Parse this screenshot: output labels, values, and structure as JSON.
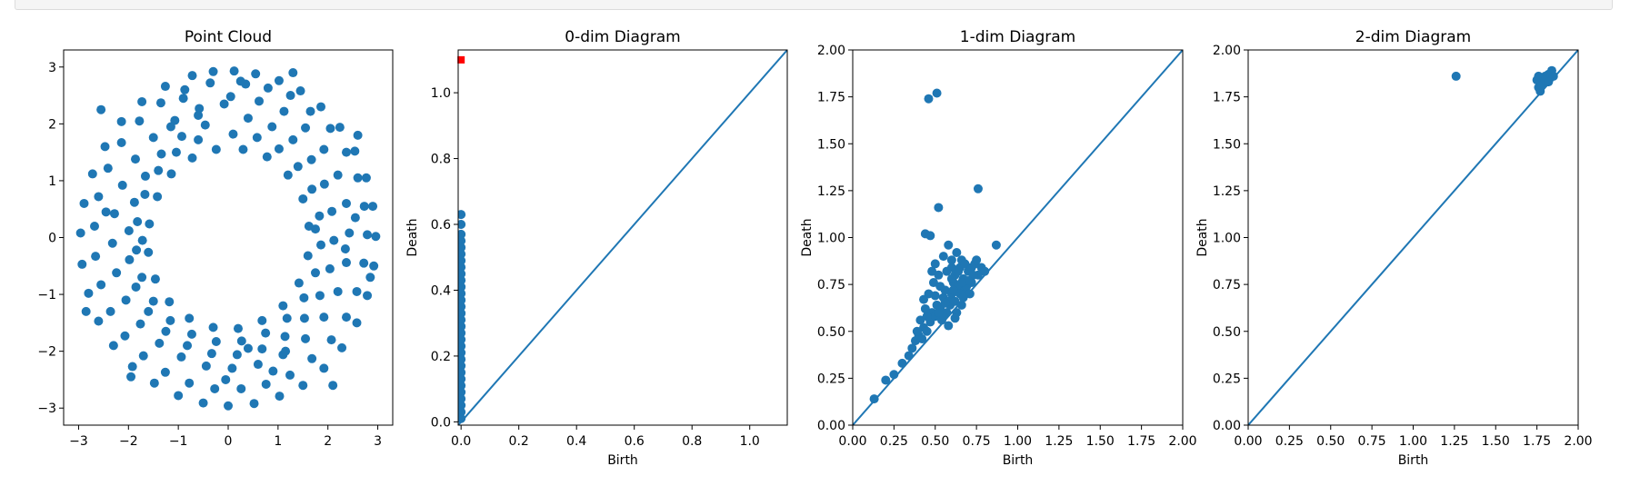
{
  "output_bar": {},
  "chart_data": [
    {
      "type": "scatter",
      "title": "Point Cloud",
      "xlabel": "",
      "ylabel": "",
      "xlim": [
        -3.3,
        3.3
      ],
      "ylim": [
        -3.3,
        3.3
      ],
      "xticks": [
        -3,
        -2,
        -1,
        0,
        1,
        2,
        3
      ],
      "yticks": [
        -3,
        -2,
        -1,
        0,
        1,
        2,
        3
      ],
      "xtick_labels": [
        "−3",
        "−2",
        "−1",
        "0",
        "1",
        "2",
        "3"
      ],
      "ytick_labels": [
        "−3",
        "−2",
        "−1",
        "0",
        "1",
        "2",
        "3"
      ],
      "color": "#1f77b4",
      "grid": false,
      "points": [
        [
          0.12,
          2.93
        ],
        [
          0.55,
          2.88
        ],
        [
          1.02,
          2.76
        ],
        [
          1.45,
          2.58
        ],
        [
          1.86,
          2.3
        ],
        [
          2.24,
          1.94
        ],
        [
          2.54,
          1.52
        ],
        [
          2.77,
          1.05
        ],
        [
          2.9,
          0.55
        ],
        [
          2.96,
          0.02
        ],
        [
          2.92,
          -0.5
        ],
        [
          2.79,
          -1.02
        ],
        [
          2.58,
          -1.5
        ],
        [
          2.28,
          -1.94
        ],
        [
          1.92,
          -2.3
        ],
        [
          1.5,
          -2.6
        ],
        [
          1.03,
          -2.79
        ],
        [
          0.52,
          -2.92
        ],
        [
          0.0,
          -2.96
        ],
        [
          -0.5,
          -2.91
        ],
        [
          -1.0,
          -2.78
        ],
        [
          -1.48,
          -2.56
        ],
        [
          -1.92,
          -2.27
        ],
        [
          -2.3,
          -1.9
        ],
        [
          -2.6,
          -1.47
        ],
        [
          -2.8,
          -0.98
        ],
        [
          -2.93,
          -0.47
        ],
        [
          -2.96,
          0.08
        ],
        [
          -2.89,
          0.6
        ],
        [
          -2.72,
          1.12
        ],
        [
          -2.47,
          1.6
        ],
        [
          -2.14,
          2.04
        ],
        [
          -1.73,
          2.39
        ],
        [
          -1.26,
          2.66
        ],
        [
          -0.72,
          2.85
        ],
        [
          -0.3,
          2.92
        ],
        [
          0.35,
          2.7
        ],
        [
          0.8,
          2.63
        ],
        [
          1.25,
          2.5
        ],
        [
          1.65,
          2.22
        ],
        [
          2.05,
          1.92
        ],
        [
          2.37,
          1.5
        ],
        [
          2.6,
          1.05
        ],
        [
          2.73,
          0.55
        ],
        [
          2.79,
          0.05
        ],
        [
          2.72,
          -0.45
        ],
        [
          2.58,
          -0.95
        ],
        [
          2.37,
          -1.4
        ],
        [
          2.07,
          -1.8
        ],
        [
          1.68,
          -2.13
        ],
        [
          1.24,
          -2.42
        ],
        [
          0.76,
          -2.58
        ],
        [
          0.26,
          -2.66
        ],
        [
          -0.27,
          -2.66
        ],
        [
          -0.78,
          -2.56
        ],
        [
          -1.26,
          -2.37
        ],
        [
          -1.7,
          -2.08
        ],
        [
          -2.07,
          -1.73
        ],
        [
          -2.36,
          -1.3
        ],
        [
          -2.55,
          -0.83
        ],
        [
          -2.66,
          -0.33
        ],
        [
          -2.68,
          0.2
        ],
        [
          -2.6,
          0.72
        ],
        [
          -2.41,
          1.22
        ],
        [
          -2.14,
          1.67
        ],
        [
          -1.78,
          2.05
        ],
        [
          -1.35,
          2.37
        ],
        [
          -0.87,
          2.6
        ],
        [
          -0.36,
          2.72
        ],
        [
          0.05,
          2.48
        ],
        [
          0.62,
          2.4
        ],
        [
          1.12,
          2.22
        ],
        [
          1.55,
          1.93
        ],
        [
          1.92,
          1.55
        ],
        [
          2.2,
          1.1
        ],
        [
          2.37,
          0.6
        ],
        [
          2.43,
          0.08
        ],
        [
          2.37,
          -0.44
        ],
        [
          2.2,
          -0.95
        ],
        [
          1.92,
          -1.4
        ],
        [
          1.55,
          -1.78
        ],
        [
          1.1,
          -2.06
        ],
        [
          0.6,
          -2.23
        ],
        [
          0.08,
          -2.3
        ],
        [
          -0.44,
          -2.26
        ],
        [
          -0.94,
          -2.1
        ],
        [
          -1.38,
          -1.86
        ],
        [
          -1.76,
          -1.52
        ],
        [
          -2.05,
          -1.1
        ],
        [
          -2.24,
          -0.62
        ],
        [
          -2.32,
          -0.1
        ],
        [
          -2.28,
          0.42
        ],
        [
          -2.12,
          0.92
        ],
        [
          -1.86,
          1.38
        ],
        [
          -1.5,
          1.76
        ],
        [
          -1.07,
          2.06
        ],
        [
          -0.58,
          2.27
        ],
        [
          -0.08,
          2.35
        ],
        [
          0.4,
          2.1
        ],
        [
          0.88,
          1.95
        ],
        [
          1.3,
          1.72
        ],
        [
          1.67,
          1.37
        ],
        [
          1.93,
          0.94
        ],
        [
          2.08,
          0.46
        ],
        [
          2.12,
          -0.05
        ],
        [
          2.04,
          -0.55
        ],
        [
          1.84,
          -1.02
        ],
        [
          1.53,
          -1.42
        ],
        [
          1.14,
          -1.74
        ],
        [
          0.68,
          -1.96
        ],
        [
          0.18,
          -2.06
        ],
        [
          -0.33,
          -2.04
        ],
        [
          -0.82,
          -1.9
        ],
        [
          -1.25,
          -1.65
        ],
        [
          -1.6,
          -1.3
        ],
        [
          -1.85,
          -0.87
        ],
        [
          -1.98,
          -0.39
        ],
        [
          -1.99,
          0.12
        ],
        [
          -1.88,
          0.62
        ],
        [
          -1.66,
          1.08
        ],
        [
          -1.34,
          1.47
        ],
        [
          -0.93,
          1.78
        ],
        [
          -0.46,
          1.98
        ],
        [
          0.1,
          1.82
        ],
        [
          0.58,
          1.76
        ],
        [
          1.02,
          1.56
        ],
        [
          1.4,
          1.25
        ],
        [
          1.68,
          0.85
        ],
        [
          1.83,
          0.38
        ],
        [
          1.86,
          -0.13
        ],
        [
          1.75,
          -0.62
        ],
        [
          1.52,
          -1.06
        ],
        [
          1.18,
          -1.42
        ],
        [
          0.75,
          -1.68
        ],
        [
          0.27,
          -1.82
        ],
        [
          -0.24,
          -1.83
        ],
        [
          -0.73,
          -1.7
        ],
        [
          -1.16,
          -1.46
        ],
        [
          -1.5,
          -1.12
        ],
        [
          -1.73,
          -0.7
        ],
        [
          -1.84,
          -0.22
        ],
        [
          -1.82,
          0.28
        ],
        [
          -1.67,
          0.76
        ],
        [
          -1.4,
          1.18
        ],
        [
          -1.04,
          1.5
        ],
        [
          -0.6,
          1.72
        ],
        [
          0.3,
          1.55
        ],
        [
          0.78,
          1.42
        ],
        [
          1.2,
          1.1
        ],
        [
          1.5,
          0.68
        ],
        [
          1.62,
          0.2
        ],
        [
          1.6,
          -0.32
        ],
        [
          1.42,
          -0.8
        ],
        [
          1.1,
          -1.2
        ],
        [
          0.68,
          -1.46
        ],
        [
          0.2,
          -1.6
        ],
        [
          -0.3,
          -1.58
        ],
        [
          -0.78,
          -1.42
        ],
        [
          -1.18,
          -1.13
        ],
        [
          -1.46,
          -0.73
        ],
        [
          -1.6,
          -0.26
        ],
        [
          -1.58,
          0.24
        ],
        [
          -1.42,
          0.72
        ],
        [
          -1.14,
          1.12
        ],
        [
          -0.72,
          1.4
        ],
        [
          -0.24,
          1.55
        ],
        [
          1.3,
          2.9
        ],
        [
          2.6,
          1.8
        ],
        [
          -0.9,
          2.45
        ],
        [
          2.1,
          -2.6
        ],
        [
          -2.55,
          2.25
        ],
        [
          0.9,
          -2.35
        ],
        [
          -1.95,
          -2.45
        ],
        [
          2.85,
          -0.7
        ],
        [
          -2.85,
          -1.3
        ],
        [
          1.75,
          0.15
        ],
        [
          -1.72,
          -0.05
        ],
        [
          0.4,
          -1.95
        ],
        [
          -0.6,
          2.15
        ],
        [
          2.35,
          -0.2
        ],
        [
          -2.45,
          0.45
        ],
        [
          1.15,
          -2.0
        ],
        [
          -1.15,
          1.95
        ],
        [
          0.25,
          2.75
        ],
        [
          -0.05,
          -2.5
        ],
        [
          2.55,
          0.35
        ]
      ]
    },
    {
      "type": "scatter",
      "title": "0-dim Diagram",
      "xlabel": "Birth",
      "ylabel": "Death",
      "xlim": [
        -0.01,
        1.13
      ],
      "ylim": [
        -0.01,
        1.13
      ],
      "xticks": [
        0.0,
        0.2,
        0.4,
        0.6,
        0.8,
        1.0
      ],
      "yticks": [
        0.0,
        0.2,
        0.4,
        0.6,
        0.8,
        1.0
      ],
      "xtick_labels": [
        "0.0",
        "0.2",
        "0.4",
        "0.6",
        "0.8",
        "1.0"
      ],
      "ytick_labels": [
        "0.0",
        "0.2",
        "0.4",
        "0.6",
        "0.8",
        "1.0"
      ],
      "diagonal": true,
      "color": "#1f77b4",
      "infinite_point": {
        "x": 0.0,
        "y": 1.1,
        "color": "#ff0000",
        "marker": "square"
      },
      "points": [
        [
          0,
          0.63
        ],
        [
          0,
          0.6
        ],
        [
          0,
          0.57
        ],
        [
          0,
          0.55
        ],
        [
          0,
          0.53
        ],
        [
          0,
          0.51
        ],
        [
          0,
          0.49
        ],
        [
          0,
          0.47
        ],
        [
          0,
          0.45
        ],
        [
          0,
          0.43
        ],
        [
          0,
          0.41
        ],
        [
          0,
          0.39
        ],
        [
          0,
          0.37
        ],
        [
          0,
          0.35
        ],
        [
          0,
          0.33
        ],
        [
          0,
          0.31
        ],
        [
          0,
          0.29
        ],
        [
          0,
          0.27
        ],
        [
          0,
          0.25
        ],
        [
          0,
          0.23
        ],
        [
          0,
          0.21
        ],
        [
          0,
          0.19
        ],
        [
          0,
          0.17
        ],
        [
          0,
          0.15
        ],
        [
          0,
          0.13
        ],
        [
          0,
          0.11
        ],
        [
          0,
          0.09
        ],
        [
          0,
          0.07
        ],
        [
          0,
          0.05
        ],
        [
          0,
          0.03
        ],
        [
          0,
          0.01
        ]
      ]
    },
    {
      "type": "scatter",
      "title": "1-dim Diagram",
      "xlabel": "Birth",
      "ylabel": "Death",
      "xlim": [
        0.0,
        2.0
      ],
      "ylim": [
        0.0,
        2.0
      ],
      "xticks": [
        0.0,
        0.25,
        0.5,
        0.75,
        1.0,
        1.25,
        1.5,
        1.75,
        2.0
      ],
      "yticks": [
        0.0,
        0.25,
        0.5,
        0.75,
        1.0,
        1.25,
        1.5,
        1.75,
        2.0
      ],
      "xtick_labels": [
        "0.00",
        "0.25",
        "0.50",
        "0.75",
        "1.00",
        "1.25",
        "1.50",
        "1.75",
        "2.00"
      ],
      "ytick_labels": [
        "0.00",
        "0.25",
        "0.50",
        "0.75",
        "1.00",
        "1.25",
        "1.50",
        "1.75",
        "2.00"
      ],
      "diagonal": true,
      "color": "#1f77b4",
      "points": [
        [
          0.46,
          1.74
        ],
        [
          0.51,
          1.77
        ],
        [
          0.52,
          1.16
        ],
        [
          0.76,
          1.26
        ],
        [
          0.87,
          0.96
        ],
        [
          0.44,
          1.02
        ],
        [
          0.47,
          1.01
        ],
        [
          0.13,
          0.14
        ],
        [
          0.2,
          0.24
        ],
        [
          0.25,
          0.27
        ],
        [
          0.3,
          0.33
        ],
        [
          0.34,
          0.37
        ],
        [
          0.36,
          0.41
        ],
        [
          0.38,
          0.45
        ],
        [
          0.4,
          0.48
        ],
        [
          0.42,
          0.46
        ],
        [
          0.43,
          0.52
        ],
        [
          0.45,
          0.5
        ],
        [
          0.47,
          0.55
        ],
        [
          0.48,
          0.6
        ],
        [
          0.5,
          0.58
        ],
        [
          0.51,
          0.64
        ],
        [
          0.53,
          0.62
        ],
        [
          0.55,
          0.68
        ],
        [
          0.56,
          0.72
        ],
        [
          0.58,
          0.66
        ],
        [
          0.6,
          0.7
        ],
        [
          0.61,
          0.76
        ],
        [
          0.62,
          0.8
        ],
        [
          0.64,
          0.74
        ],
        [
          0.65,
          0.84
        ],
        [
          0.67,
          0.78
        ],
        [
          0.68,
          0.72
        ],
        [
          0.7,
          0.82
        ],
        [
          0.72,
          0.76
        ],
        [
          0.74,
          0.86
        ],
        [
          0.76,
          0.8
        ],
        [
          0.78,
          0.84
        ],
        [
          0.8,
          0.82
        ],
        [
          0.5,
          0.86
        ],
        [
          0.55,
          0.9
        ],
        [
          0.58,
          0.96
        ],
        [
          0.6,
          0.88
        ],
        [
          0.63,
          0.92
        ],
        [
          0.66,
          0.88
        ],
        [
          0.44,
          0.62
        ],
        [
          0.46,
          0.7
        ],
        [
          0.49,
          0.76
        ],
        [
          0.52,
          0.8
        ],
        [
          0.54,
          0.56
        ],
        [
          0.57,
          0.6
        ],
        [
          0.59,
          0.64
        ],
        [
          0.62,
          0.66
        ],
        [
          0.65,
          0.7
        ],
        [
          0.69,
          0.74
        ],
        [
          0.71,
          0.7
        ],
        [
          0.41,
          0.56
        ],
        [
          0.43,
          0.67
        ],
        [
          0.5,
          0.69
        ],
        [
          0.53,
          0.74
        ],
        [
          0.57,
          0.82
        ],
        [
          0.6,
          0.78
        ],
        [
          0.63,
          0.6
        ],
        [
          0.66,
          0.64
        ],
        [
          0.73,
          0.8
        ],
        [
          0.75,
          0.88
        ],
        [
          0.48,
          0.82
        ],
        [
          0.55,
          0.58
        ],
        [
          0.58,
          0.53
        ],
        [
          0.61,
          0.72
        ],
        [
          0.64,
          0.82
        ],
        [
          0.67,
          0.68
        ],
        [
          0.7,
          0.77
        ],
        [
          0.39,
          0.5
        ],
        [
          0.45,
          0.58
        ],
        [
          0.52,
          0.6
        ],
        [
          0.56,
          0.65
        ],
        [
          0.6,
          0.84
        ],
        [
          0.68,
          0.86
        ],
        [
          0.72,
          0.84
        ],
        [
          0.62,
          0.57
        ],
        [
          0.66,
          0.76
        ]
      ]
    },
    {
      "type": "scatter",
      "title": "2-dim Diagram",
      "xlabel": "Birth",
      "ylabel": "Death",
      "xlim": [
        0.0,
        2.0
      ],
      "ylim": [
        0.0,
        2.0
      ],
      "xticks": [
        0.0,
        0.25,
        0.5,
        0.75,
        1.0,
        1.25,
        1.5,
        1.75,
        2.0
      ],
      "yticks": [
        0.0,
        0.25,
        0.5,
        0.75,
        1.0,
        1.25,
        1.5,
        1.75,
        2.0
      ],
      "xtick_labels": [
        "0.00",
        "0.25",
        "0.50",
        "0.75",
        "1.00",
        "1.25",
        "1.50",
        "1.75",
        "2.00"
      ],
      "ytick_labels": [
        "0.00",
        "0.25",
        "0.50",
        "0.75",
        "1.00",
        "1.25",
        "1.50",
        "1.75",
        "2.00"
      ],
      "diagonal": true,
      "color": "#1f77b4",
      "points": [
        [
          1.26,
          1.86
        ],
        [
          1.75,
          1.84
        ],
        [
          1.76,
          1.8
        ],
        [
          1.77,
          1.78
        ],
        [
          1.78,
          1.85
        ],
        [
          1.79,
          1.82
        ],
        [
          1.8,
          1.86
        ],
        [
          1.81,
          1.83
        ],
        [
          1.82,
          1.87
        ],
        [
          1.83,
          1.85
        ],
        [
          1.84,
          1.89
        ],
        [
          1.85,
          1.86
        ],
        [
          1.76,
          1.86
        ],
        [
          1.78,
          1.81
        ],
        [
          1.8,
          1.84
        ],
        [
          1.82,
          1.83
        ]
      ]
    }
  ]
}
